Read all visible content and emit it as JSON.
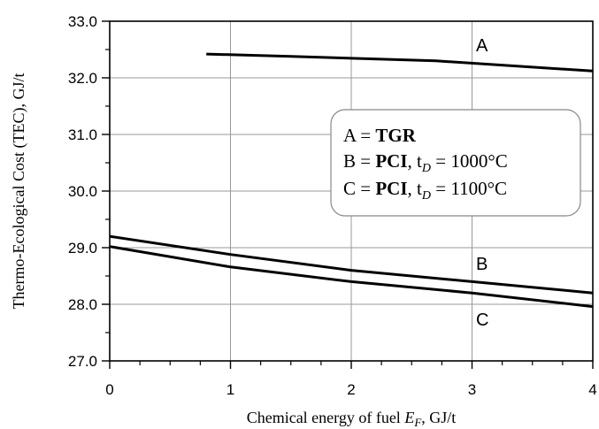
{
  "chart_data": {
    "type": "line",
    "xlabel_text": "Chemical energy of fuel ",
    "xlabel_var": "E",
    "xlabel_sub": "F",
    "xlabel_unit": ", GJ/t",
    "ylabel": "Thermo-Ecological Cost (TEC), GJ/t",
    "xlim": [
      0,
      4
    ],
    "ylim": [
      27.0,
      33.0
    ],
    "x_ticks": [
      "0",
      "1",
      "2",
      "3",
      "4"
    ],
    "y_ticks": [
      "27.0",
      "28.0",
      "29.0",
      "30.0",
      "31.0",
      "32.0",
      "33.0"
    ],
    "grid": true,
    "series": [
      {
        "name": "A",
        "x": [
          0.8,
          1.5,
          2.7,
          4.0
        ],
        "y": [
          32.42,
          32.38,
          32.3,
          32.12
        ]
      },
      {
        "name": "B",
        "x": [
          0,
          1,
          2,
          3,
          4
        ],
        "y": [
          29.2,
          28.88,
          28.6,
          28.4,
          28.2
        ]
      },
      {
        "name": "C",
        "x": [
          0,
          1,
          2,
          3,
          4
        ],
        "y": [
          29.02,
          28.66,
          28.4,
          28.2,
          27.96
        ]
      }
    ],
    "legend": [
      {
        "key": "A = ",
        "bold": "TGR",
        "rest": ""
      },
      {
        "key": "B = ",
        "bold": "PCI",
        "rest": ", t",
        "sub": "D",
        "tail": " = 1000°C"
      },
      {
        "key": "C = ",
        "bold": "PCI",
        "rest": ", t",
        "sub": "D",
        "tail": " = 1100°C"
      }
    ]
  }
}
